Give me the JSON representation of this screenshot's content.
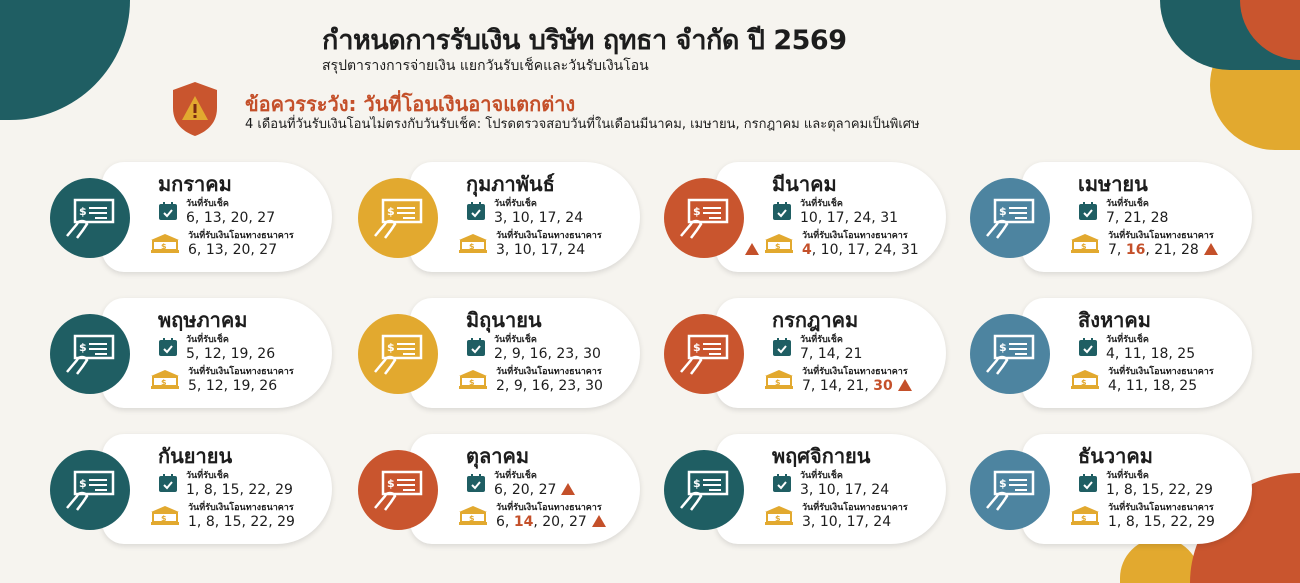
{
  "header": {
    "title": "กำหนดการรับเงิน บริษัท ฤทธา จำกัด ปี 2569",
    "subtitle": "สรุปตารางการจ่ายเงิน แยกวันรับเช็คและวันรับเงินโอน"
  },
  "warning": {
    "title": "ข้อควรระวัง: วันที่โอนเงินอาจแตกต่าง",
    "text": "4 เดือนที่วันรับเงินโอนไม่ตรงกับวันรับเช็ค: โปรดตรวจสอบวันที่ในเดือนมีนาคม, เมษายน, กรกฎาคม และตุลาคมเป็นพิเศษ",
    "icon": "shield-warning-icon"
  },
  "labels": {
    "cheque": "วันที่รับเช็ค",
    "transfer": "วันที่รับเงินโอนทางธนาคาร"
  },
  "colors": {
    "teal": "#1f5e63",
    "mustard": "#e2a92f",
    "rust": "#c9552e",
    "steel": "#4d84a0",
    "alert": "#c4502a"
  },
  "months": [
    {
      "name": "มกราคม",
      "color": "teal",
      "cheque": [
        "6",
        "13",
        "20",
        "27"
      ],
      "transfer": [
        "6",
        "13",
        "20",
        "27"
      ]
    },
    {
      "name": "กุมภาพันธ์",
      "color": "mustard",
      "cheque": [
        "3",
        "10",
        "17",
        "24"
      ],
      "transfer": [
        "3",
        "10",
        "17",
        "24"
      ]
    },
    {
      "name": "มีนาคม",
      "color": "rust",
      "cheque": [
        "10",
        "17",
        "24",
        "31"
      ],
      "transfer": [
        "4",
        "10",
        "17",
        "24",
        "31"
      ],
      "transfer_highlight": [
        "4"
      ],
      "transfer_warn_left": true
    },
    {
      "name": "เมษายน",
      "color": "steel",
      "cheque": [
        "7",
        "21",
        "28"
      ],
      "transfer": [
        "7",
        "16",
        "21",
        "28"
      ],
      "transfer_highlight": [
        "16"
      ],
      "transfer_warn": true
    },
    {
      "name": "พฤษภาคม",
      "color": "teal",
      "cheque": [
        "5",
        "12",
        "19",
        "26"
      ],
      "transfer": [
        "5",
        "12",
        "19",
        "26"
      ]
    },
    {
      "name": "มิถุนายน",
      "color": "mustard",
      "cheque": [
        "2",
        "9",
        "16",
        "23",
        "30"
      ],
      "transfer": [
        "2",
        "9",
        "16",
        "23",
        "30"
      ]
    },
    {
      "name": "กรกฎาคม",
      "color": "rust",
      "cheque": [
        "7",
        "14",
        "21"
      ],
      "transfer": [
        "7",
        "14",
        "21",
        "30"
      ],
      "transfer_highlight": [
        "30"
      ],
      "transfer_warn": true
    },
    {
      "name": "สิงหาคม",
      "color": "steel",
      "cheque": [
        "4",
        "11",
        "18",
        "25"
      ],
      "transfer": [
        "4",
        "11",
        "18",
        "25"
      ]
    },
    {
      "name": "กันยายน",
      "color": "teal",
      "cheque": [
        "1",
        "8",
        "15",
        "22",
        "29"
      ],
      "transfer": [
        "1",
        "8",
        "15",
        "22",
        "29"
      ]
    },
    {
      "name": "ตุลาคม",
      "color": "rust",
      "cheque": [
        "6",
        "20",
        "27"
      ],
      "cheque_warn": true,
      "transfer": [
        "6",
        "14",
        "20",
        "27"
      ],
      "transfer_highlight": [
        "14"
      ],
      "transfer_warn": true
    },
    {
      "name": "พฤศจิกายน",
      "color": "teal",
      "cheque": [
        "3",
        "10",
        "17",
        "24"
      ],
      "transfer": [
        "3",
        "10",
        "17",
        "24"
      ]
    },
    {
      "name": "ธันวาคม",
      "color": "steel",
      "cheque": [
        "1",
        "8",
        "15",
        "22",
        "29"
      ],
      "transfer": [
        "1",
        "8",
        "15",
        "22",
        "29"
      ]
    }
  ]
}
